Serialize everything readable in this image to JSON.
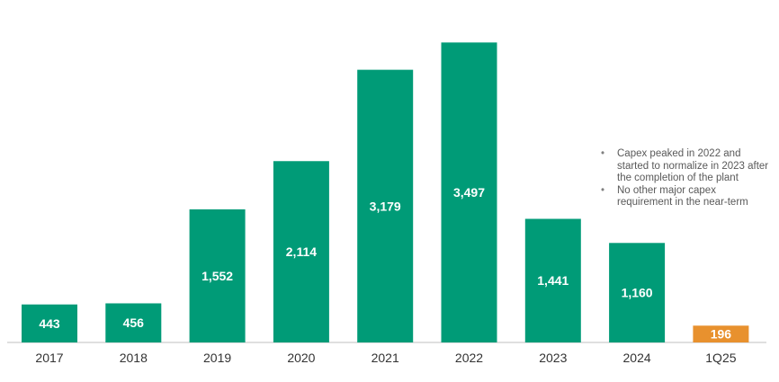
{
  "chart_data": {
    "type": "bar",
    "categories": [
      "2017",
      "2018",
      "2019",
      "2020",
      "2021",
      "2022",
      "2023",
      "2024",
      "1Q25"
    ],
    "values": [
      443,
      456,
      1552,
      2114,
      3179,
      3497,
      1441,
      1160,
      196
    ],
    "data_labels": [
      "443",
      "456",
      "1,552",
      "2,114",
      "3,179",
      "3,497",
      "1,441",
      "1,160",
      "196"
    ],
    "colors": [
      "#009b77",
      "#009b77",
      "#009b77",
      "#009b77",
      "#009b77",
      "#009b77",
      "#009b77",
      "#009b77",
      "#e8912e"
    ],
    "title": "",
    "xlabel": "",
    "ylabel": "",
    "ylim": [
      0,
      3500
    ],
    "grid": false,
    "legend": "none"
  },
  "annotations": [
    "Capex peaked in 2022 and started to normalize in 2023 after the completion of the plant",
    "No other major capex requirement in the near-term"
  ]
}
